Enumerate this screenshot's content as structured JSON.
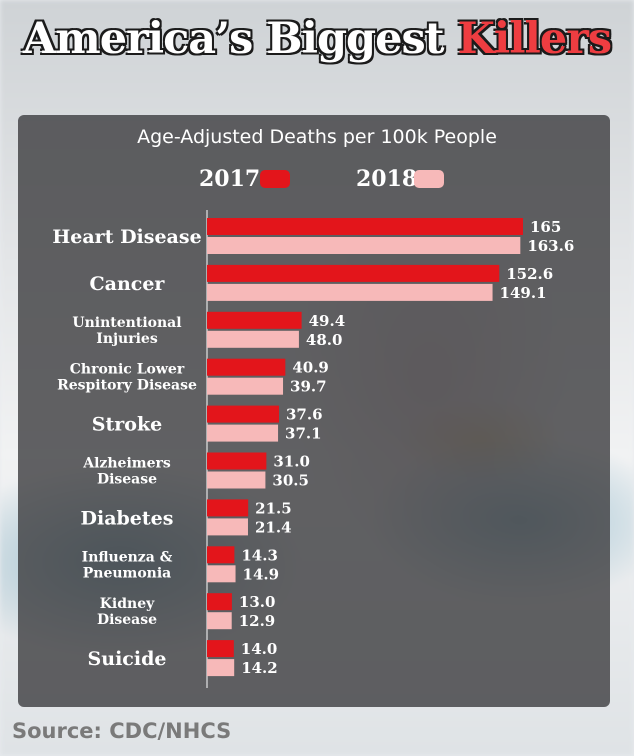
{
  "headline": {
    "main": "America’s Biggest",
    "accent": "Killers"
  },
  "source": "Source: CDC/NHCS",
  "colors": {
    "series_2017": "#e3151b",
    "series_2018": "#f7b9b9",
    "headline_accent": "#ee3d41"
  },
  "chart_data": {
    "type": "bar",
    "orientation": "horizontal",
    "title": "Age-Adjusted Deaths per 100k People",
    "legend_placement": "top-left",
    "grid": false,
    "xlim": [
      0,
      165
    ],
    "categories": [
      "Heart Disease",
      "Cancer",
      "Unintentional\nInjuries",
      "Chronic Lower\nRespitory Disease",
      "Stroke",
      "Alzheimers\nDisease",
      "Diabetes",
      "Influenza &\nPneumonia",
      "Kidney\nDisease",
      "Suicide"
    ],
    "series": [
      {
        "name": "2017",
        "values": [
          165,
          152.6,
          49.4,
          40.9,
          37.6,
          31.0,
          21.5,
          14.3,
          13.0,
          14.0
        ],
        "labels": [
          "165",
          "152.6",
          "49.4",
          "40.9",
          "37.6",
          "31.0",
          "21.5",
          "14.3",
          "13.0",
          "14.0"
        ]
      },
      {
        "name": "2018",
        "values": [
          163.6,
          149.1,
          48.0,
          39.7,
          37.1,
          30.5,
          21.4,
          14.9,
          12.9,
          14.2
        ],
        "labels": [
          "163.6",
          "149.1",
          "48.0",
          "39.7",
          "37.1",
          "30.5",
          "21.4",
          "14.9",
          "12.9",
          "14.2"
        ]
      }
    ]
  }
}
